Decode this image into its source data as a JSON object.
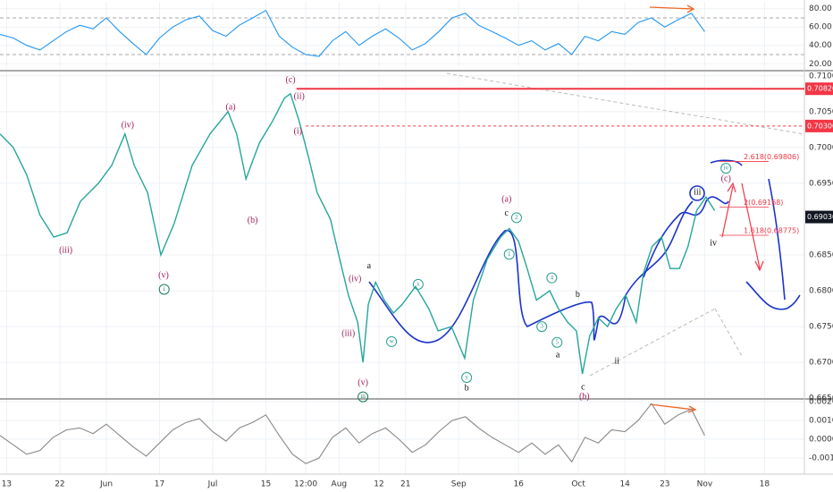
{
  "chart_data": [
    {
      "type": "line",
      "panel": "rsi",
      "color": "#2196f3",
      "xlim": [
        -1,
        120
      ],
      "ylim": [
        14.4,
        87.5
      ],
      "yticks": [
        {
          "value": 80,
          "label": "80.00"
        },
        {
          "value": 60,
          "label": "60.00"
        },
        {
          "value": 40,
          "label": "40.00"
        },
        {
          "value": 20,
          "label": "20.00"
        }
      ],
      "levels": [
        70,
        30
      ],
      "x": [
        -1,
        1,
        3,
        5,
        7,
        9,
        11,
        13,
        15,
        17,
        19,
        21,
        23,
        25,
        27,
        29,
        31,
        33,
        35,
        37,
        39,
        41,
        43,
        45,
        47,
        49,
        51,
        53,
        55,
        57,
        59,
        61,
        63,
        65,
        67,
        69,
        71,
        73,
        75,
        77,
        79,
        81,
        83,
        85,
        87,
        89,
        91,
        93,
        95,
        97,
        99,
        101,
        103,
        105
      ],
      "values": [
        52,
        48,
        40,
        35,
        45,
        55,
        62,
        58,
        70,
        55,
        42,
        30,
        48,
        60,
        68,
        72,
        56,
        50,
        62,
        70,
        78,
        50,
        38,
        30,
        28,
        45,
        55,
        40,
        50,
        58,
        48,
        35,
        42,
        55,
        70,
        75,
        62,
        55,
        48,
        40,
        45,
        35,
        42,
        30,
        50,
        45,
        55,
        52,
        65,
        70,
        60,
        68,
        75,
        55
      ]
    },
    {
      "type": "line",
      "panel": "price",
      "color": "#26a69a",
      "xlim": [
        -1,
        120
      ],
      "ylim": [
        0.6649,
        0.7106
      ],
      "yticks": [
        {
          "value": 0.71,
          "label": "0.71000"
        },
        {
          "value": 0.705,
          "label": "0.70500"
        },
        {
          "value": 0.7,
          "label": "0.70000"
        },
        {
          "value": 0.695,
          "label": "0.69500"
        },
        {
          "value": 0.685,
          "label": "0.68500"
        },
        {
          "value": 0.68,
          "label": "0.68000"
        },
        {
          "value": 0.675,
          "label": "0.67500"
        },
        {
          "value": 0.67,
          "label": "0.67000"
        },
        {
          "value": 0.665,
          "label": "0.66500"
        }
      ],
      "x": [
        -1,
        1,
        3,
        5,
        7.1,
        9.1,
        11.1,
        13.8,
        15.8,
        17.8,
        19.2,
        21.2,
        23.2,
        25.2,
        27.9,
        30.6,
        33.3,
        34.6,
        36,
        38,
        40,
        41.8,
        42.7,
        44,
        45.4,
        46.7,
        48.7,
        50.1,
        51.4,
        52.8,
        53.6,
        54.4,
        55.5,
        56.8,
        58.2,
        59.5,
        61.5,
        63.5,
        64.9,
        66.9,
        68.9,
        70.2,
        72.3,
        74.3,
        75.6,
        77,
        78.3,
        79.7,
        81.7,
        83,
        84.4,
        85.7,
        86.6,
        87.7,
        89,
        90.4,
        91.7,
        93.1,
        94.7,
        95.8,
        97.1,
        98.5,
        99.8,
        101.2,
        102.5,
        103.8,
        105.2,
        106.5
      ],
      "values": [
        0.7019,
        0.7,
        0.6962,
        0.6906,
        0.6875,
        0.6881,
        0.6925,
        0.695,
        0.6975,
        0.7019,
        0.6975,
        0.6937,
        0.685,
        0.6894,
        0.6975,
        0.7019,
        0.705,
        0.7019,
        0.6956,
        0.7006,
        0.7037,
        0.7069,
        0.7075,
        0.7037,
        0.6987,
        0.6937,
        0.69,
        0.6844,
        0.6794,
        0.6756,
        0.67,
        0.6781,
        0.6812,
        0.6787,
        0.6769,
        0.6781,
        0.6806,
        0.6775,
        0.6744,
        0.675,
        0.6706,
        0.6787,
        0.6844,
        0.6875,
        0.6887,
        0.6869,
        0.6831,
        0.6787,
        0.68,
        0.6775,
        0.6756,
        0.6744,
        0.6684,
        0.6737,
        0.6762,
        0.675,
        0.6775,
        0.6794,
        0.6756,
        0.6825,
        0.6862,
        0.6875,
        0.6831,
        0.6831,
        0.6862,
        0.6912,
        0.6931,
        0.6912
      ],
      "hlines": [
        {
          "value": 0.7082,
          "label": "0.70820",
          "color": "#f23645",
          "dashed": false,
          "x_start": 43.6
        },
        {
          "value": 0.703,
          "label": "0.70300",
          "color": "#f23645",
          "dashed": true,
          "x_start": 45
        }
      ],
      "last_price": {
        "value": 0.6903,
        "label": "0.69030"
      },
      "fib_levels": [
        {
          "label": "2.618(0.69806)",
          "value": 0.69806
        },
        {
          "label": "2(0.69168)",
          "value": 0.69168
        },
        {
          "label": "1.618(0.68775)",
          "value": 0.68775
        }
      ],
      "annotations": [
        {
          "text": "(c)",
          "x": 42.7,
          "y": 0.7094,
          "color": "#a0205e",
          "circled": false
        },
        {
          "text": "(ii)",
          "x": 44,
          "y": 0.7071,
          "color": "#a0205e",
          "circled": false
        },
        {
          "text": "(i)",
          "x": 43.8,
          "y": 0.7022,
          "color": "#a0205e",
          "circled": false
        },
        {
          "text": "(a)",
          "x": 33.7,
          "y": 0.7056,
          "color": "#a0205e",
          "circled": false
        },
        {
          "text": "(iv)",
          "x": 18.2,
          "y": 0.7031,
          "color": "#a0205e",
          "circled": false
        },
        {
          "text": "(iii)",
          "x": 8.9,
          "y": 0.6856,
          "color": "#a0205e",
          "circled": false
        },
        {
          "text": "(b)",
          "x": 37,
          "y": 0.6898,
          "color": "#a0205e",
          "circled": false
        },
        {
          "text": "(v)",
          "x": 23.6,
          "y": 0.6821,
          "color": "#a0205e",
          "circled": false
        },
        {
          "text": "i",
          "x": 23.7,
          "y": 0.6802,
          "color": "#1b7a5a",
          "circled": true
        },
        {
          "text": "(iv)",
          "x": 52.4,
          "y": 0.6816,
          "color": "#a0205e",
          "circled": false
        },
        {
          "text": "(iii)",
          "x": 51.4,
          "y": 0.674,
          "color": "#a0205e",
          "circled": false
        },
        {
          "text": "(v)",
          "x": 53.6,
          "y": 0.6671,
          "color": "#a0205e",
          "circled": false
        },
        {
          "text": "iii",
          "x": 53.6,
          "y": 0.6652,
          "color": "#1b7a5a",
          "circled": true
        },
        {
          "text": "a",
          "x": 54.5,
          "y": 0.6834,
          "color": "#111",
          "circled": false
        },
        {
          "text": "x",
          "x": 61.9,
          "y": 0.6809,
          "color": "#2a9d8f",
          "circled": true
        },
        {
          "text": "w",
          "x": 57.9,
          "y": 0.6729,
          "color": "#2a9d8f",
          "circled": true
        },
        {
          "text": "y",
          "x": 69.2,
          "y": 0.6679,
          "color": "#2a9d8f",
          "circled": true
        },
        {
          "text": "b",
          "x": 69.2,
          "y": 0.6664,
          "color": "#111",
          "circled": false
        },
        {
          "text": "(a)",
          "x": 75.2,
          "y": 0.6927,
          "color": "#a0205e",
          "circled": false
        },
        {
          "text": "c",
          "x": 75.2,
          "y": 0.6908,
          "color": "#111",
          "circled": false
        },
        {
          "text": "2",
          "x": 76.7,
          "y": 0.6902,
          "color": "#2a9d8f",
          "circled": true
        },
        {
          "text": "1",
          "x": 75.6,
          "y": 0.6851,
          "color": "#2a9d8f",
          "circled": true
        },
        {
          "text": "4",
          "x": 82,
          "y": 0.6818,
          "color": "#2a9d8f",
          "circled": true
        },
        {
          "text": "3",
          "x": 80.5,
          "y": 0.675,
          "color": "#2a9d8f",
          "circled": true
        },
        {
          "text": "5",
          "x": 82.8,
          "y": 0.6728,
          "color": "#2a9d8f",
          "circled": true
        },
        {
          "text": "b",
          "x": 85.9,
          "y": 0.6794,
          "color": "#111",
          "circled": false
        },
        {
          "text": "a",
          "x": 82.9,
          "y": 0.671,
          "color": "#111",
          "circled": false
        },
        {
          "text": "c",
          "x": 86.7,
          "y": 0.6665,
          "color": "#111",
          "circled": false
        },
        {
          "text": "(b)",
          "x": 86.9,
          "y": 0.6652,
          "color": "#a0205e",
          "circled": false
        },
        {
          "text": "ii",
          "x": 91.8,
          "y": 0.6701,
          "color": "#111",
          "circled": false
        },
        {
          "text": "iii",
          "x": 103.9,
          "y": 0.6937,
          "color": "#111",
          "circled": false
        },
        {
          "text": "iv",
          "x": 106.3,
          "y": 0.6866,
          "color": "#111",
          "circled": false
        },
        {
          "text": "iv",
          "x": 108.2,
          "y": 0.6971,
          "color": "#2a9d8f",
          "circled": true
        },
        {
          "text": "(c)",
          "x": 108.2,
          "y": 0.6956,
          "color": "#a0205e",
          "circled": false
        }
      ]
    },
    {
      "type": "line",
      "panel": "macd",
      "color": "#888888",
      "xlim": [
        -1,
        120
      ],
      "ylim": [
        -0.00186,
        0.0021
      ],
      "yticks": [
        {
          "value": 0.002,
          "label": "0.00200"
        },
        {
          "value": 0.001,
          "label": "0.00100"
        },
        {
          "value": 0,
          "label": "0.00000"
        },
        {
          "value": -0.001,
          "label": "-0.00100"
        }
      ],
      "xticks": [
        {
          "value": 0,
          "label": "13"
        },
        {
          "value": 8,
          "label": "22"
        },
        {
          "value": 15,
          "label": "Jun"
        },
        {
          "value": 23,
          "label": "17"
        },
        {
          "value": 31,
          "label": "Jul"
        },
        {
          "value": 39,
          "label": "15"
        },
        {
          "value": 45,
          "label": "12:00"
        },
        {
          "value": 50,
          "label": "Aug"
        },
        {
          "value": 56,
          "label": "12"
        },
        {
          "value": 60,
          "label": "21"
        },
        {
          "value": 68,
          "label": "Sep"
        },
        {
          "value": 77,
          "label": "16"
        },
        {
          "value": 86,
          "label": "Oct"
        },
        {
          "value": 93,
          "label": "14"
        },
        {
          "value": 99,
          "label": "23"
        },
        {
          "value": 105,
          "label": "Nov"
        },
        {
          "value": 114,
          "label": "18"
        }
      ],
      "x": [
        -1,
        1,
        3,
        5,
        7,
        9,
        11,
        13,
        15,
        17,
        19,
        21,
        23,
        25,
        27,
        29,
        31,
        33,
        35,
        37,
        39,
        41,
        43,
        45,
        47,
        49,
        51,
        53,
        55,
        57,
        59,
        61,
        63,
        65,
        67,
        69,
        71,
        73,
        75,
        77,
        79,
        81,
        83,
        85,
        87,
        89,
        91,
        93,
        95,
        97,
        99,
        101,
        103,
        105
      ],
      "values": [
        0.0002,
        -0.0003,
        -0.0008,
        -0.0006,
        0.0001,
        0.0005,
        0.0006,
        0.0003,
        0.0008,
        0.0002,
        -0.0004,
        -0.0009,
        -0.0002,
        0.0005,
        0.0009,
        0.0011,
        0.0004,
        -0.0001,
        0.0006,
        0.0009,
        0.0013,
        0.0002,
        -0.0008,
        -0.0013,
        -0.001,
        0.0001,
        0.0006,
        -0.0002,
        0.0003,
        0.0006,
        0,
        -0.0007,
        -0.0003,
        0.0004,
        0.001,
        0.0012,
        0.0006,
        0.0001,
        -0.0003,
        -0.0007,
        -0.0002,
        -0.0008,
        -0.0003,
        -0.0012,
        0.0001,
        -0.0002,
        0.0005,
        0.0004,
        0.001,
        0.0019,
        0.0008,
        0.0013,
        0.0016,
        0.0002
      ]
    }
  ]
}
